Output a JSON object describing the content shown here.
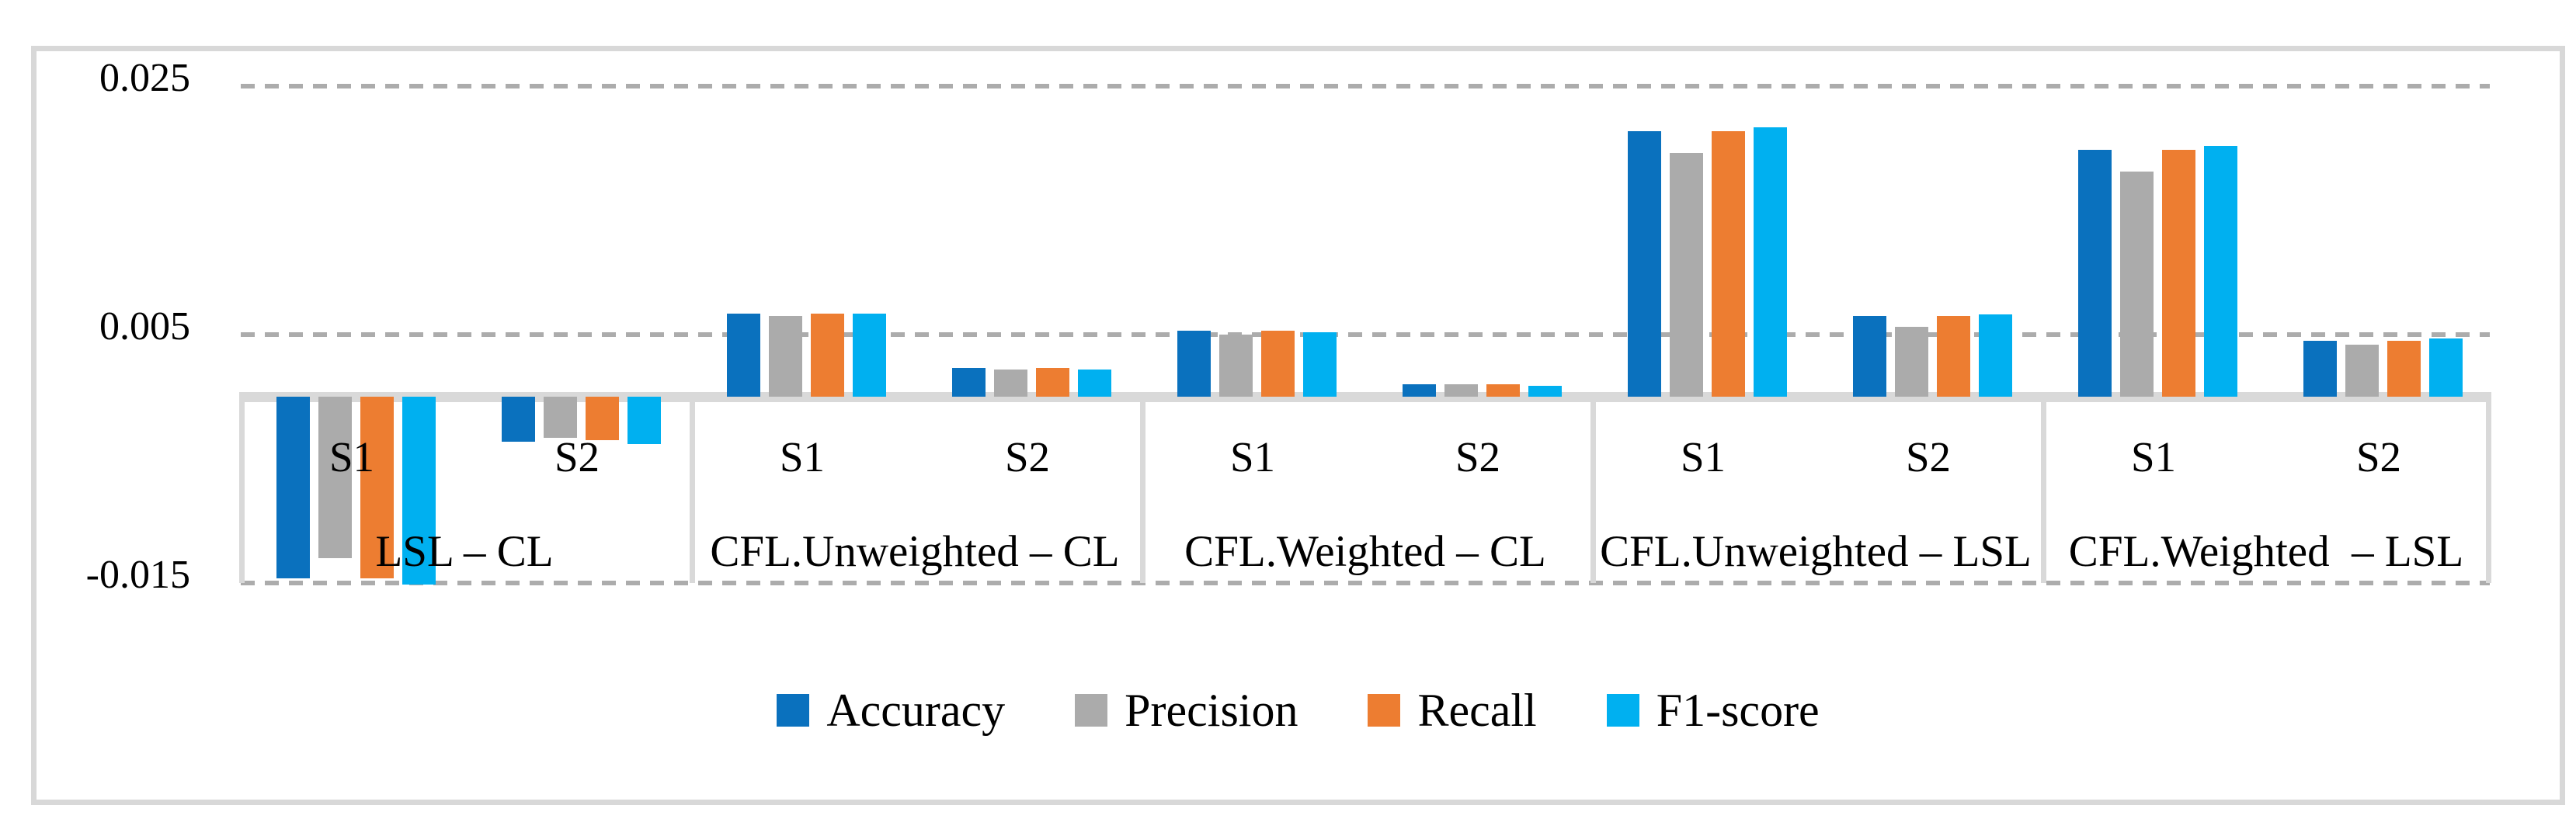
{
  "figure": {
    "background_color": "#FFFFFF",
    "border_color": "#D8D8D8",
    "gridline_color": "#ACACAC",
    "axis_band_color": "#D9D9D9"
  },
  "chart_data": {
    "type": "bar",
    "title": "",
    "xlabel": "",
    "ylabel": "",
    "grid": "dashed horizontal",
    "legend_position": "bottom",
    "ylim": [
      -0.0175,
      0.027
    ],
    "baseline": 0,
    "yticks": [
      {
        "label": "0.025",
        "value": 0.025
      },
      {
        "label": "0.005",
        "value": 0.005
      },
      {
        "label": "-0.015",
        "value": -0.015
      }
    ],
    "series": [
      {
        "name": "Accuracy",
        "color": "#0A71BE"
      },
      {
        "name": "Precision",
        "color": "#ABABAB"
      },
      {
        "name": "Recall",
        "color": "#ED7D31"
      },
      {
        "name": "F1-score",
        "color": "#00B0F0"
      }
    ],
    "groups": [
      {
        "label": "LSL – CL",
        "subgroups": [
          {
            "label": "S1",
            "values": [
              -0.0146,
              -0.013,
              -0.0146,
              -0.0151
            ]
          },
          {
            "label": "S2",
            "values": [
              -0.0036,
              -0.0033,
              -0.0035,
              -0.0038
            ]
          }
        ]
      },
      {
        "label": "CFL.Unweighted – CL",
        "subgroups": [
          {
            "label": "S1",
            "values": [
              0.0067,
              0.0065,
              0.0067,
              0.0067
            ]
          },
          {
            "label": "S2",
            "values": [
              0.0023,
              0.0022,
              0.0023,
              0.0022
            ]
          }
        ]
      },
      {
        "label": "CFL.Weighted – CL",
        "subgroups": [
          {
            "label": "S1",
            "values": [
              0.0053,
              0.005,
              0.0053,
              0.0052
            ]
          },
          {
            "label": "S2",
            "values": [
              0.001,
              0.001,
              0.001,
              0.0009
            ]
          }
        ]
      },
      {
        "label": "CFL.Unweighted – LSL",
        "subgroups": [
          {
            "label": "S1",
            "values": [
              0.0214,
              0.0196,
              0.0214,
              0.0217
            ]
          },
          {
            "label": "S2",
            "values": [
              0.0065,
              0.0056,
              0.0065,
              0.0066
            ]
          }
        ]
      },
      {
        "label": "CFL.Weighted  – LSL",
        "subgroups": [
          {
            "label": "S1",
            "values": [
              0.0199,
              0.0181,
              0.0199,
              0.0202
            ]
          },
          {
            "label": "S2",
            "values": [
              0.0045,
              0.0042,
              0.0045,
              0.0047
            ]
          }
        ]
      }
    ],
    "legend": [
      "Accuracy",
      "Precision",
      "Recall",
      "F1-score"
    ]
  }
}
